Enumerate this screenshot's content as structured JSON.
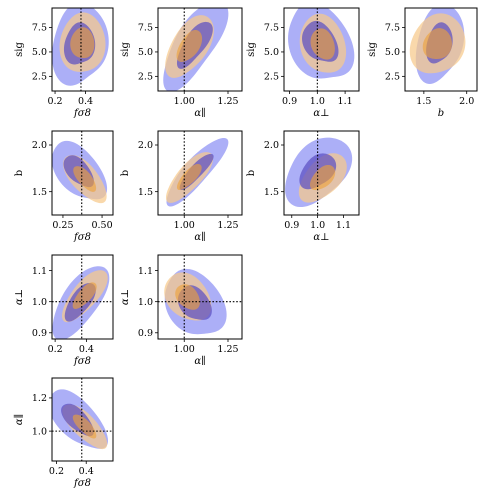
{
  "figure": {
    "type": "corner-plot"
  },
  "colors": {
    "blue_outer": "#9a9df5",
    "blue_inner": "#5b4fc2",
    "orange_outer": "#f7c98a",
    "orange_inner": "#eda23a",
    "overlap": "#b79fb0"
  },
  "chart_data": [
    {
      "type": "contour",
      "id": "fs8-sig",
      "xlabel": "fσ8",
      "ylabel": "sig",
      "xlim": [
        0.18,
        0.58
      ],
      "ylim": [
        1.0,
        9.5
      ],
      "xticks": [
        {
          "v": 0.2,
          "label": "0.2"
        },
        {
          "v": 0.4,
          "label": "0.4"
        }
      ],
      "yticks": [
        {
          "v": 2.5,
          "label": "2.5"
        },
        {
          "v": 5.0,
          "label": "5.0"
        },
        {
          "v": 7.5,
          "label": "7.5"
        }
      ],
      "vline": 0.37,
      "hline": null,
      "series": [
        {
          "name": "blue",
          "center": [
            0.36,
            5.8
          ],
          "sigma": [
            0.078,
            1.9
          ],
          "rho": 0.0,
          "skew": 0.18
        },
        {
          "name": "orange",
          "center": [
            0.38,
            5.9
          ],
          "sigma": [
            0.065,
            1.45
          ],
          "rho": 0.0,
          "skew": 0.1
        }
      ]
    },
    {
      "type": "contour",
      "id": "apar-sig",
      "xlabel": "α∥",
      "ylabel": "sig",
      "xlim": [
        0.85,
        1.33
      ],
      "ylim": [
        1.0,
        9.5
      ],
      "xticks": [
        {
          "v": 1.0,
          "label": "1.00"
        },
        {
          "v": 1.25,
          "label": "1.25"
        }
      ],
      "yticks": [
        {
          "v": 2.5,
          "label": "2.5"
        },
        {
          "v": 5.0,
          "label": "5.0"
        },
        {
          "v": 7.5,
          "label": "7.5"
        }
      ],
      "vline": 1.0,
      "hline": null,
      "series": [
        {
          "name": "blue",
          "center": [
            1.06,
            5.8
          ],
          "sigma": [
            0.078,
            1.9
          ],
          "rho": 0.62,
          "skew": 0.18
        },
        {
          "name": "orange",
          "center": [
            1.03,
            5.6
          ],
          "sigma": [
            0.06,
            1.45
          ],
          "rho": 0.5,
          "skew": 0.1
        }
      ]
    },
    {
      "type": "contour",
      "id": "aperp-sig",
      "xlabel": "α⊥",
      "ylabel": "sig",
      "xlim": [
        0.88,
        1.15
      ],
      "ylim": [
        1.0,
        9.5
      ],
      "xticks": [
        {
          "v": 0.9,
          "label": "0.9"
        },
        {
          "v": 1.0,
          "label": "1.0"
        },
        {
          "v": 1.1,
          "label": "1.1"
        }
      ],
      "yticks": [
        {
          "v": 2.5,
          "label": "2.5"
        },
        {
          "v": 5.0,
          "label": "5.0"
        },
        {
          "v": 7.5,
          "label": "7.5"
        }
      ],
      "vline": 1.0,
      "hline": null,
      "series": [
        {
          "name": "blue",
          "center": [
            1.01,
            6.0
          ],
          "sigma": [
            0.05,
            1.9
          ],
          "rho": -0.35,
          "skew": 0.18
        },
        {
          "name": "orange",
          "center": [
            1.02,
            5.8
          ],
          "sigma": [
            0.036,
            1.45
          ],
          "rho": -0.2,
          "skew": 0.1
        }
      ]
    },
    {
      "type": "contour",
      "id": "b-sig",
      "xlabel": "b",
      "ylabel": "sig",
      "xlim": [
        1.28,
        2.12
      ],
      "ylim": [
        1.0,
        9.5
      ],
      "xticks": [
        {
          "v": 1.5,
          "label": "1.5"
        },
        {
          "v": 2.0,
          "label": "2.0"
        }
      ],
      "yticks": [
        {
          "v": 2.5,
          "label": "2.5"
        },
        {
          "v": 5.0,
          "label": "5.0"
        },
        {
          "v": 7.5,
          "label": "7.5"
        }
      ],
      "vline": null,
      "hline": null,
      "series": [
        {
          "name": "blue",
          "center": [
            1.68,
            5.9
          ],
          "sigma": [
            0.12,
            1.8
          ],
          "rho": 0.15,
          "skew": 0.15
        },
        {
          "name": "orange",
          "center": [
            1.66,
            5.8
          ],
          "sigma": [
            0.14,
            1.45
          ],
          "rho": 0.1,
          "skew": 0.1
        }
      ]
    },
    {
      "type": "contour",
      "id": "fs8-b",
      "xlabel": "fσ8",
      "ylabel": "b",
      "xlim": [
        0.18,
        0.57
      ],
      "ylim": [
        1.25,
        2.15
      ],
      "xticks": [
        {
          "v": 0.25,
          "label": "0.25"
        },
        {
          "v": 0.5,
          "label": "0.50"
        }
      ],
      "yticks": [
        {
          "v": 1.5,
          "label": "1.5"
        },
        {
          "v": 2.0,
          "label": "2.0"
        }
      ],
      "vline": 0.37,
      "hline": null,
      "series": [
        {
          "name": "blue",
          "center": [
            0.35,
            1.72
          ],
          "sigma": [
            0.075,
            0.15
          ],
          "rho": -0.55,
          "skew": 0.15
        },
        {
          "name": "orange",
          "center": [
            0.39,
            1.64
          ],
          "sigma": [
            0.06,
            0.12
          ],
          "rho": -0.65,
          "skew": 0.1
        }
      ]
    },
    {
      "type": "contour",
      "id": "apar-b",
      "xlabel": "α∥",
      "ylabel": "b",
      "xlim": [
        0.85,
        1.33
      ],
      "ylim": [
        1.25,
        2.15
      ],
      "xticks": [
        {
          "v": 1.0,
          "label": "1.00"
        },
        {
          "v": 1.25,
          "label": "1.25"
        }
      ],
      "yticks": [
        {
          "v": 1.5,
          "label": "1.5"
        },
        {
          "v": 2.0,
          "label": "2.0"
        }
      ],
      "vline": 1.0,
      "hline": null,
      "series": [
        {
          "name": "blue",
          "center": [
            1.07,
            1.72
          ],
          "sigma": [
            0.075,
            0.15
          ],
          "rho": 0.82,
          "skew": 0.15
        },
        {
          "name": "orange",
          "center": [
            1.03,
            1.66
          ],
          "sigma": [
            0.058,
            0.12
          ],
          "rho": 0.72,
          "skew": 0.1
        }
      ]
    },
    {
      "type": "contour",
      "id": "aperp-b",
      "xlabel": "α⊥",
      "ylabel": "b",
      "xlim": [
        0.87,
        1.16
      ],
      "ylim": [
        1.25,
        2.15
      ],
      "xticks": [
        {
          "v": 0.9,
          "label": "0.9"
        },
        {
          "v": 1.0,
          "label": "1.0"
        },
        {
          "v": 1.1,
          "label": "1.1"
        }
      ],
      "yticks": [
        {
          "v": 1.5,
          "label": "1.5"
        },
        {
          "v": 2.0,
          "label": "2.0"
        }
      ],
      "vline": 1.0,
      "hline": null,
      "series": [
        {
          "name": "blue",
          "center": [
            1.0,
            1.72
          ],
          "sigma": [
            0.055,
            0.16
          ],
          "rho": 0.3,
          "skew": 0.15
        },
        {
          "name": "orange",
          "center": [
            1.02,
            1.65
          ],
          "sigma": [
            0.04,
            0.12
          ],
          "rho": 0.45,
          "skew": 0.1
        }
      ]
    },
    {
      "type": "contour",
      "id": "fs8-aperp",
      "xlabel": "fσ8",
      "ylabel": "α⊥",
      "xlim": [
        0.18,
        0.57
      ],
      "ylim": [
        0.88,
        1.15
      ],
      "xticks": [
        {
          "v": 0.2,
          "label": "0.2"
        },
        {
          "v": 0.4,
          "label": "0.4"
        }
      ],
      "yticks": [
        {
          "v": 0.9,
          "label": "0.9"
        },
        {
          "v": 1.0,
          "label": "1.0"
        },
        {
          "v": 1.1,
          "label": "1.1"
        }
      ],
      "vline": 0.37,
      "hline": 1.0,
      "series": [
        {
          "name": "blue",
          "center": [
            0.36,
            1.0
          ],
          "sigma": [
            0.078,
            0.05
          ],
          "rho": 0.6,
          "skew": 0.12
        },
        {
          "name": "orange",
          "center": [
            0.39,
            1.02
          ],
          "sigma": [
            0.063,
            0.037
          ],
          "rho": 0.68,
          "skew": 0.1
        }
      ]
    },
    {
      "type": "contour",
      "id": "apar-aperp",
      "xlabel": "α∥",
      "ylabel": "α⊥",
      "xlim": [
        0.85,
        1.33
      ],
      "ylim": [
        0.88,
        1.15
      ],
      "xticks": [
        {
          "v": 1.0,
          "label": "1.00"
        },
        {
          "v": 1.25,
          "label": "1.25"
        }
      ],
      "yticks": [
        {
          "v": 0.9,
          "label": "0.9"
        },
        {
          "v": 1.0,
          "label": "1.0"
        },
        {
          "v": 1.1,
          "label": "1.1"
        }
      ],
      "vline": 1.0,
      "hline": 1.0,
      "series": [
        {
          "name": "blue",
          "center": [
            1.06,
            0.995
          ],
          "sigma": [
            0.075,
            0.05
          ],
          "rho": -0.35,
          "skew": 0.15
        },
        {
          "name": "orange",
          "center": [
            1.02,
            1.015
          ],
          "sigma": [
            0.058,
            0.037
          ],
          "rho": -0.3,
          "skew": 0.1
        }
      ]
    },
    {
      "type": "contour",
      "id": "fs8-apar",
      "xlabel": "fσ8",
      "ylabel": "α∥",
      "xlim": [
        0.17,
        0.58
      ],
      "ylim": [
        0.82,
        1.32
      ],
      "xticks": [
        {
          "v": 0.2,
          "label": "0.2"
        },
        {
          "v": 0.4,
          "label": "0.4"
        }
      ],
      "yticks": [
        {
          "v": 1.0,
          "label": "1.0"
        },
        {
          "v": 1.2,
          "label": "1.2"
        }
      ],
      "vline": 0.37,
      "hline": 1.0,
      "series": [
        {
          "name": "blue",
          "center": [
            0.34,
            1.07
          ],
          "sigma": [
            0.085,
            0.085
          ],
          "rho": -0.65,
          "skew": 0.15
        },
        {
          "name": "orange",
          "center": [
            0.39,
            1.03
          ],
          "sigma": [
            0.065,
            0.062
          ],
          "rho": -0.72,
          "skew": 0.1
        }
      ]
    }
  ]
}
